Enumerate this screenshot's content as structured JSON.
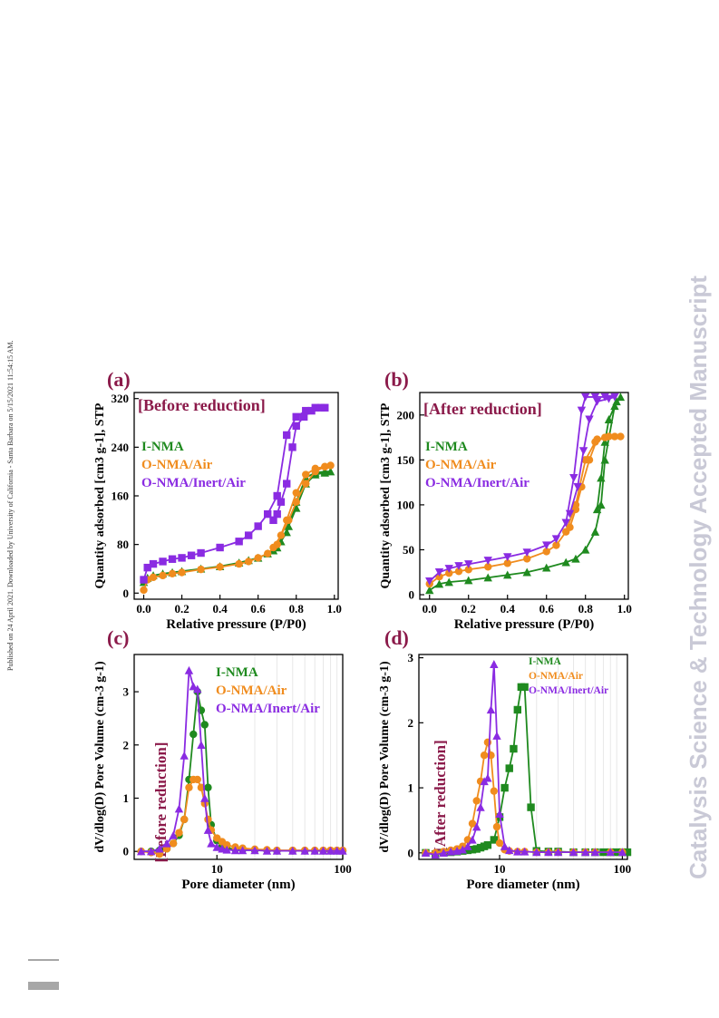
{
  "sidebar_note": "Published on 24 April 2021. Downloaded by University of California - Santa Barbara on 5/15/2021 11:54:15 AM.",
  "watermark": "Catalysis Science & Technology Accepted Manuscript",
  "colors": {
    "green": "#1f8a1f",
    "orange": "#f08c1e",
    "purple": "#8a2be2",
    "title": "#8b1a4a",
    "watermark": "#c9c9d6"
  },
  "chart_data": [
    {
      "type": "line",
      "panel": "(a)",
      "title": "[Before reduction]",
      "xlabel": "Relative pressure (P/P0)",
      "ylabel": "Quantity adsorbed [cm3 g-1], STP",
      "xlim": [
        -0.05,
        1.02
      ],
      "ylim": [
        -10,
        330
      ],
      "xticks": [
        "0.0",
        "0.2",
        "0.4",
        "0.6",
        "0.8",
        "1.0"
      ],
      "yticks": [
        "0",
        "80",
        "160",
        "240",
        "320"
      ],
      "legend_position": "left",
      "series": [
        {
          "name": "I-NMA",
          "marker": "triangle",
          "x": [
            0.0,
            0.02,
            0.05,
            0.1,
            0.15,
            0.2,
            0.3,
            0.4,
            0.5,
            0.55,
            0.6,
            0.65,
            0.7,
            0.75,
            0.8,
            0.85,
            0.9,
            0.95,
            0.98,
            0.95,
            0.9,
            0.85,
            0.8,
            0.76,
            0.72,
            0.68
          ],
          "y": [
            18,
            25,
            29,
            32,
            34,
            36,
            40,
            44,
            50,
            54,
            58,
            65,
            75,
            100,
            150,
            190,
            198,
            200,
            200,
            198,
            195,
            180,
            140,
            110,
            85,
            70
          ]
        },
        {
          "name": "O-NMA/Air",
          "marker": "circle",
          "x": [
            0.0,
            0.02,
            0.05,
            0.1,
            0.15,
            0.2,
            0.3,
            0.4,
            0.5,
            0.55,
            0.6,
            0.65,
            0.7,
            0.75,
            0.8,
            0.85,
            0.9,
            0.95,
            0.98,
            0.95,
            0.9,
            0.85,
            0.8,
            0.76,
            0.72,
            0.68
          ],
          "y": [
            5,
            22,
            26,
            29,
            32,
            34,
            39,
            43,
            48,
            52,
            58,
            65,
            80,
            120,
            165,
            195,
            205,
            208,
            210,
            208,
            200,
            180,
            150,
            120,
            95,
            75
          ]
        },
        {
          "name": "O-NMA/Inert/Air",
          "marker": "square",
          "x": [
            0.0,
            0.02,
            0.05,
            0.1,
            0.15,
            0.2,
            0.25,
            0.3,
            0.4,
            0.5,
            0.55,
            0.6,
            0.65,
            0.7,
            0.75,
            0.8,
            0.85,
            0.9,
            0.95,
            0.93,
            0.88,
            0.84,
            0.8,
            0.78,
            0.75,
            0.72,
            0.7,
            0.68
          ],
          "y": [
            22,
            42,
            48,
            52,
            56,
            58,
            62,
            66,
            75,
            85,
            95,
            110,
            130,
            160,
            260,
            290,
            300,
            305,
            305,
            305,
            300,
            290,
            275,
            240,
            180,
            150,
            130,
            120
          ]
        }
      ]
    },
    {
      "type": "line",
      "panel": "(b)",
      "title": "[After reduction]",
      "xlabel": "Relative pressure (P/P0)",
      "ylabel": "Quantity adsorbed [cm3 g-1], STP",
      "xlim": [
        -0.05,
        1.02
      ],
      "ylim": [
        -5,
        225
      ],
      "xticks": [
        "0.0",
        "0.2",
        "0.4",
        "0.6",
        "0.8",
        "1.0"
      ],
      "yticks": [
        "0",
        "50",
        "100",
        "150",
        "200"
      ],
      "legend_position": "left",
      "series": [
        {
          "name": "I-NMA",
          "marker": "triangle",
          "x": [
            0.0,
            0.05,
            0.1,
            0.2,
            0.3,
            0.4,
            0.5,
            0.6,
            0.7,
            0.75,
            0.8,
            0.85,
            0.88,
            0.9,
            0.95,
            0.98,
            0.96,
            0.92,
            0.9,
            0.88,
            0.86
          ],
          "y": [
            5,
            12,
            14,
            16,
            19,
            22,
            25,
            30,
            36,
            40,
            50,
            70,
            100,
            150,
            210,
            220,
            215,
            195,
            170,
            130,
            95
          ]
        },
        {
          "name": "O-NMA/Air",
          "marker": "circle",
          "x": [
            0.0,
            0.05,
            0.1,
            0.15,
            0.2,
            0.3,
            0.4,
            0.5,
            0.6,
            0.65,
            0.7,
            0.75,
            0.8,
            0.85,
            0.9,
            0.95,
            0.98,
            0.92,
            0.86,
            0.82,
            0.78,
            0.75,
            0.72
          ],
          "y": [
            12,
            20,
            24,
            26,
            28,
            31,
            35,
            40,
            48,
            55,
            70,
            100,
            150,
            170,
            175,
            176,
            176,
            176,
            173,
            150,
            120,
            95,
            75
          ]
        },
        {
          "name": "O-NMA/Inert/Air",
          "marker": "down-triangle",
          "x": [
            0.0,
            0.05,
            0.1,
            0.15,
            0.2,
            0.3,
            0.4,
            0.5,
            0.6,
            0.65,
            0.7,
            0.74,
            0.78,
            0.8,
            0.85,
            0.9,
            0.95,
            0.92,
            0.86,
            0.82,
            0.79,
            0.76,
            0.72
          ],
          "y": [
            15,
            25,
            29,
            32,
            34,
            38,
            42,
            47,
            55,
            62,
            80,
            130,
            205,
            220,
            220,
            220,
            220,
            218,
            215,
            195,
            160,
            120,
            90
          ]
        }
      ]
    },
    {
      "type": "line",
      "panel": "(c)",
      "title": "[Before reduction]",
      "xlabel": "Pore diameter (nm)",
      "ylabel": "dV/dlog(D) Pore Volume (cm-3 g-1)",
      "xscale": "log",
      "xlim": [
        2.2,
        100
      ],
      "ylim": [
        -0.15,
        3.7
      ],
      "xticks": [
        "10",
        "100"
      ],
      "yticks": [
        "0",
        "1",
        "2",
        "3"
      ],
      "legend_position": "top-right",
      "series": [
        {
          "name": "I-NMA",
          "marker": "circle",
          "x": [
            2.5,
            3.0,
            3.5,
            4.0,
            4.5,
            5.0,
            5.5,
            6.0,
            6.5,
            7.0,
            7.5,
            8.0,
            8.5,
            9.0,
            10,
            11,
            12,
            14,
            16,
            20,
            25,
            30,
            40,
            50,
            60,
            70,
            80,
            90,
            100
          ],
          "y": [
            0.0,
            0.0,
            0.02,
            0.05,
            0.15,
            0.3,
            0.6,
            1.35,
            2.2,
            3.0,
            2.65,
            2.38,
            1.2,
            0.5,
            0.2,
            0.1,
            0.06,
            0.04,
            0.03,
            0.02,
            0.02,
            0.01,
            0.01,
            0.01,
            0.01,
            0.01,
            0.01,
            0.01,
            0.01
          ]
        },
        {
          "name": "O-NMA/Air",
          "marker": "circle",
          "x": [
            2.5,
            3.0,
            3.5,
            4.0,
            4.5,
            5.0,
            5.5,
            6.0,
            6.5,
            7.0,
            7.5,
            8.0,
            8.5,
            9.0,
            10,
            11,
            12,
            14,
            16,
            20,
            25,
            30,
            40,
            50,
            60,
            70,
            80,
            90,
            100
          ],
          "y": [
            0.0,
            -0.02,
            -0.05,
            0.05,
            0.15,
            0.35,
            0.6,
            1.2,
            1.35,
            1.35,
            1.2,
            0.9,
            0.6,
            0.4,
            0.25,
            0.18,
            0.12,
            0.08,
            0.06,
            0.04,
            0.03,
            0.02,
            0.02,
            0.02,
            0.02,
            0.02,
            0.02,
            0.02,
            0.02
          ]
        },
        {
          "name": "O-NMA/Inert/Air",
          "marker": "triangle",
          "x": [
            2.5,
            3.0,
            3.5,
            4.0,
            4.5,
            5.0,
            5.5,
            6.0,
            6.5,
            7.0,
            7.5,
            8.0,
            8.5,
            9.0,
            10,
            11,
            12,
            14,
            16,
            20,
            25,
            30,
            40,
            50,
            60,
            70,
            80,
            90,
            100
          ],
          "y": [
            0.0,
            0.0,
            0.05,
            0.15,
            0.3,
            0.8,
            1.8,
            3.4,
            3.1,
            3.05,
            2.0,
            1.0,
            0.4,
            0.15,
            0.08,
            0.05,
            0.03,
            0.02,
            0.02,
            0.02,
            0.01,
            0.01,
            0.01,
            0.01,
            0.01,
            0.01,
            0.01,
            0.01,
            0.01
          ]
        }
      ]
    },
    {
      "type": "line",
      "panel": "(d)",
      "title": "[After reduction]",
      "xlabel": "Pore diameter (nm)",
      "ylabel": "dV/dlog(D) Pore Volume (cm-3 g-1)",
      "xscale": "log",
      "xlim": [
        2.2,
        110
      ],
      "ylim": [
        -0.1,
        3.05
      ],
      "xticks": [
        "10",
        "100"
      ],
      "yticks": [
        "0",
        "1",
        "2",
        "3"
      ],
      "legend_position": "top-right",
      "series": [
        {
          "name": "I-NMA",
          "marker": "square",
          "x": [
            2.5,
            3.0,
            3.5,
            4.0,
            4.5,
            5.0,
            5.5,
            6.0,
            6.5,
            7.0,
            7.5,
            8.0,
            9.0,
            10,
            11,
            12,
            13,
            14,
            15,
            16,
            18,
            20,
            25,
            30,
            40,
            50,
            60,
            70,
            80,
            90,
            100,
            110
          ],
          "y": [
            0.0,
            -0.02,
            0.0,
            0.01,
            0.02,
            0.03,
            0.04,
            0.05,
            0.06,
            0.08,
            0.1,
            0.12,
            0.2,
            0.55,
            1.0,
            1.3,
            1.6,
            2.2,
            2.55,
            2.55,
            0.7,
            0.03,
            0.02,
            0.02,
            0.01,
            0.01,
            0.01,
            0.01,
            0.01,
            0.01,
            0.01,
            0.01
          ]
        },
        {
          "name": "O-NMA/Air",
          "marker": "circle",
          "x": [
            2.5,
            3.0,
            3.5,
            4.0,
            4.5,
            5.0,
            5.5,
            6.0,
            6.5,
            7.0,
            7.5,
            8.0,
            8.5,
            9.0,
            9.5,
            10,
            11,
            12,
            14,
            16,
            20,
            25,
            30,
            40,
            50,
            60,
            80,
            100
          ],
          "y": [
            0.0,
            0.0,
            0.02,
            0.04,
            0.06,
            0.1,
            0.2,
            0.45,
            0.8,
            1.1,
            1.5,
            1.7,
            1.5,
            0.95,
            0.4,
            0.15,
            0.05,
            0.03,
            0.02,
            0.02,
            0.01,
            0.01,
            0.01,
            0.01,
            0.01,
            0.01,
            0.01,
            0.01
          ]
        },
        {
          "name": "O-NMA/Inert/Air",
          "marker": "triangle",
          "x": [
            2.5,
            3.0,
            3.5,
            4.0,
            4.5,
            5.0,
            5.5,
            6.0,
            6.5,
            7.0,
            7.5,
            8.0,
            8.5,
            9.0,
            9.5,
            10,
            11,
            12,
            14,
            16,
            20,
            25,
            30,
            40,
            50,
            60,
            80,
            100
          ],
          "y": [
            0.0,
            -0.03,
            0.0,
            0.02,
            0.03,
            0.05,
            0.1,
            0.2,
            0.4,
            0.7,
            1.1,
            1.15,
            2.2,
            2.9,
            1.8,
            0.6,
            0.1,
            0.04,
            0.02,
            0.02,
            0.01,
            0.01,
            0.01,
            0.01,
            0.01,
            0.01,
            0.01,
            0.01
          ]
        }
      ]
    }
  ]
}
